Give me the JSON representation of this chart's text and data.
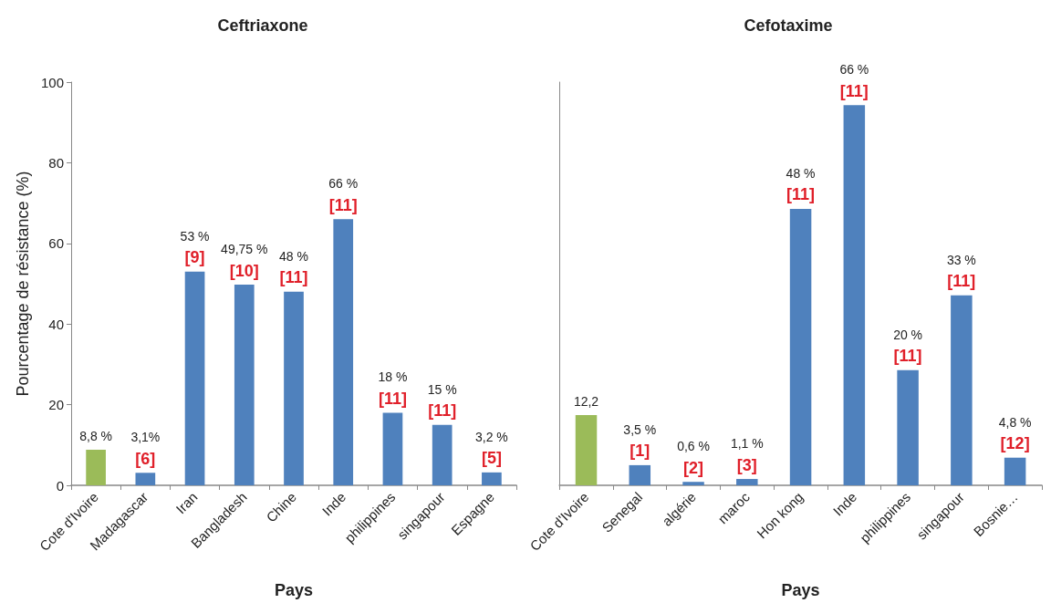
{
  "chart_data": [
    {
      "type": "bar",
      "title": "Ceftriaxone",
      "xlabel": "Pays",
      "ylabel": "Pourcentage de résistance (%)",
      "categories": [
        "Cote d'Ivoire",
        "Madagascar",
        "Iran",
        "Bangladesh",
        "Chine",
        "Inde",
        "philippines",
        "singapour",
        "Espagne"
      ],
      "values": [
        8.8,
        3.1,
        53,
        49.75,
        48,
        66,
        18,
        15,
        3.2
      ],
      "colors": [
        "#9bbb59",
        "#4f81bd",
        "#4f81bd",
        "#4f81bd",
        "#4f81bd",
        "#4f81bd",
        "#4f81bd",
        "#4f81bd",
        "#4f81bd"
      ],
      "value_labels": [
        "8,8 %",
        "3,1%",
        "53 %",
        "49,75 %",
        "48 %",
        "66 %",
        "18 %",
        "15 %",
        "3,2 %"
      ],
      "annotations": [
        {
          "text": "[6]",
          "x": "Madagascar",
          "y": 3.1
        },
        {
          "text": "[9]",
          "x": "Iran",
          "y": 53
        },
        {
          "text": "[10]",
          "x": "Bangladesh",
          "y": 49.75
        },
        {
          "text": "[11]",
          "x": "Chine",
          "y": 48
        },
        {
          "text": "[11]",
          "x": "Inde",
          "y": 66
        },
        {
          "text": "[11]",
          "x": "philippines",
          "y": 18
        },
        {
          "text": "[11]",
          "x": "singapour",
          "y": 15
        },
        {
          "text": "[5]",
          "x": "Espagne",
          "y": 3.2
        }
      ],
      "ylim": [
        0,
        100
      ],
      "yticks": [
        0,
        20,
        40,
        60,
        80,
        100
      ]
    },
    {
      "type": "bar",
      "title": "Cefotaxime",
      "xlabel": "Pays",
      "categories": [
        "Cote d'Ivoire",
        "Senegal",
        "algérie",
        "maroc",
        "Hon kong",
        "Inde",
        "philippines",
        "singapour",
        "Bosnie…"
      ],
      "values": [
        12.2,
        3.5,
        0.6,
        1.1,
        48,
        66,
        20,
        33,
        4.8
      ],
      "colors": [
        "#9bbb59",
        "#4f81bd",
        "#4f81bd",
        "#4f81bd",
        "#4f81bd",
        "#4f81bd",
        "#4f81bd",
        "#4f81bd",
        "#4f81bd"
      ],
      "value_labels": [
        "12,2",
        "3,5 %",
        "0,6 %",
        "1,1 %",
        "48 %",
        "66 %",
        "20 %",
        "33 %",
        "4,8 %"
      ],
      "annotations": [
        {
          "text": "[1]",
          "x": "Senegal",
          "y": 3.5
        },
        {
          "text": "[2]",
          "x": "algérie",
          "y": 0.6
        },
        {
          "text": "[3]",
          "x": "maroc",
          "y": 1.1
        },
        {
          "text": "[11]",
          "x": "Hon kong",
          "y": 48
        },
        {
          "text": "[11]",
          "x": "Inde",
          "y": 66
        },
        {
          "text": "[11]",
          "x": "philippines",
          "y": 20
        },
        {
          "text": "[11]",
          "x": "singapour",
          "y": 33
        },
        {
          "text": "[12]",
          "x": "Bosnie…",
          "y": 4.8
        }
      ],
      "tick_labels": "x"
    }
  ]
}
